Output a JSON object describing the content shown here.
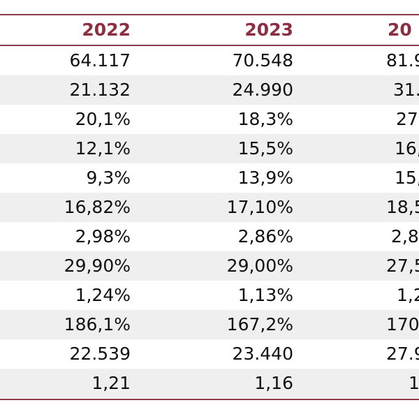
{
  "table": {
    "header": [
      "2022",
      "2023",
      "20"
    ],
    "rows": [
      [
        "64.117",
        "70.548",
        "81.9"
      ],
      [
        "21.132",
        "24.990",
        "31."
      ],
      [
        "20,1%",
        "18,3%",
        "27"
      ],
      [
        "12,1%",
        "15,5%",
        "16,"
      ],
      [
        "9,3%",
        "13,9%",
        "15,"
      ],
      [
        "16,82%",
        "17,10%",
        "18,5"
      ],
      [
        "2,98%",
        "2,86%",
        "2,8"
      ],
      [
        "29,90%",
        "29,00%",
        "27,5"
      ],
      [
        "1,24%",
        "1,13%",
        "1,2"
      ],
      [
        "186,1%",
        "167,2%",
        "170,"
      ],
      [
        "22.539",
        "23.440",
        "27.9"
      ],
      [
        "1,21",
        "1,16",
        "1"
      ]
    ]
  }
}
